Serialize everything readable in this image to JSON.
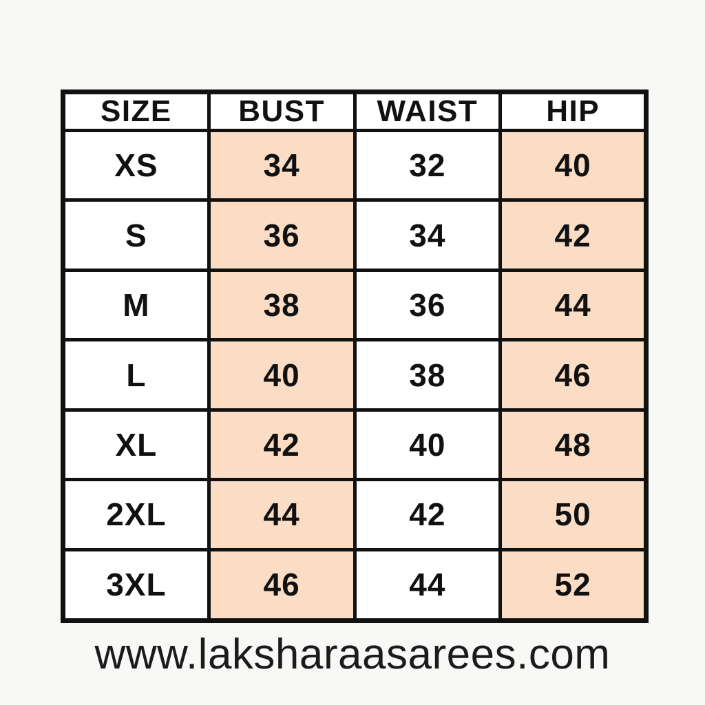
{
  "size_chart": {
    "columns": [
      "SIZE",
      "BUST",
      "WAIST",
      "HIP"
    ],
    "rows": [
      [
        "XS",
        "34",
        "32",
        "40"
      ],
      [
        "S",
        "36",
        "34",
        "42"
      ],
      [
        "M",
        "38",
        "36",
        "44"
      ],
      [
        "L",
        "40",
        "38",
        "46"
      ],
      [
        "XL",
        "42",
        "40",
        "48"
      ],
      [
        "2XL",
        "44",
        "42",
        "50"
      ],
      [
        "3XL",
        "46",
        "44",
        "52"
      ]
    ]
  },
  "footer": {
    "website": "www.laksharaasarees.com"
  },
  "colors": {
    "highlight_cell": "#FBDDC6",
    "table_border": "#111111",
    "text": "#111111",
    "page_background": "#F8F8F6"
  }
}
